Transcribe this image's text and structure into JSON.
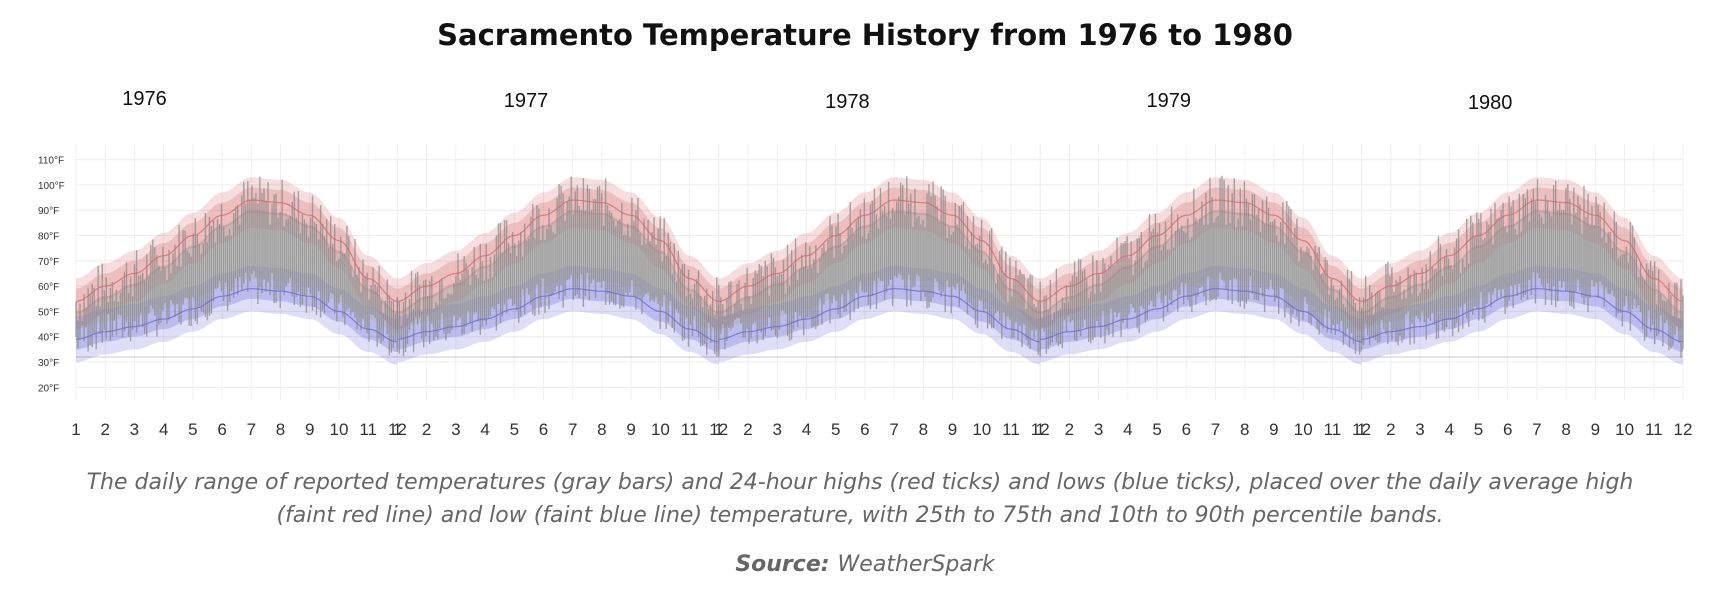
{
  "chart_data": {
    "type": "area",
    "title": "Sacramento Temperature History from 1976 to 1980",
    "years": [
      "1976",
      "1977",
      "1978",
      "1979",
      "1980"
    ],
    "months": [
      "1",
      "2",
      "3",
      "4",
      "5",
      "6",
      "7",
      "8",
      "9",
      "10",
      "11",
      "12"
    ],
    "y_ticks": [
      "110°F",
      "100°F",
      "90°F",
      "80°F",
      "70°F",
      "60°F",
      "50°F",
      "40°F",
      "30°F",
      "20°F"
    ],
    "ylim": [
      15,
      113
    ],
    "unit": "°F",
    "series": [
      {
        "name": "Average daily high",
        "values": [
          54,
          60,
          65,
          72,
          80,
          88,
          94,
          93,
          88,
          78,
          63,
          54
        ]
      },
      {
        "name": "Average daily low",
        "values": [
          39,
          42,
          44,
          47,
          51,
          56,
          59,
          58,
          56,
          50,
          43,
          38
        ]
      }
    ],
    "bands": [
      "25th to 75th percentile",
      "10th to 90th percentile"
    ],
    "daily_range_color": "#8a8a8a",
    "high_color": "#d46a6a",
    "low_color": "#6b6bd6"
  },
  "caption": "The daily range of reported temperatures (gray bars) and 24-hour highs (red ticks) and lows (blue ticks), placed over the daily average high (faint red line) and low (faint blue line) temperature, with 25th to 75th and 10th to 90th percentile bands.",
  "source": {
    "label": "Source:",
    "value": "WeatherSpark"
  }
}
